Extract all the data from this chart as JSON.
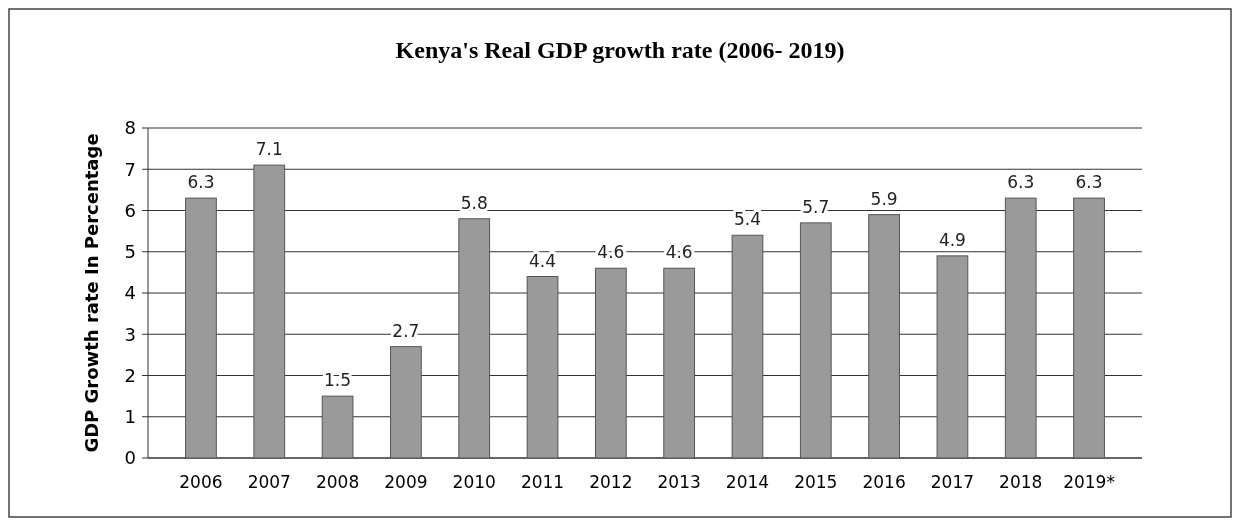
{
  "chart_data": {
    "type": "bar",
    "title": "Kenya's Real GDP growth rate (2006- 2019)",
    "ylabel": "GDP Growth rate In Percentage",
    "categories": [
      "2006",
      "2007",
      "2008",
      "2009",
      "2010",
      "2011",
      "2012",
      "2013",
      "2014",
      "2015",
      "2016",
      "2017",
      "2018",
      "2019*"
    ],
    "values": [
      6.3,
      7.1,
      1.5,
      2.7,
      5.8,
      4.4,
      4.6,
      4.6,
      5.4,
      5.7,
      5.9,
      4.9,
      6.3,
      6.3
    ],
    "color": "#9a9a9a",
    "ylim": [
      0,
      8
    ],
    "yticks": [
      0,
      1,
      2,
      3,
      4,
      5,
      6,
      7,
      8
    ],
    "grid": "y",
    "data_labels": true
  }
}
